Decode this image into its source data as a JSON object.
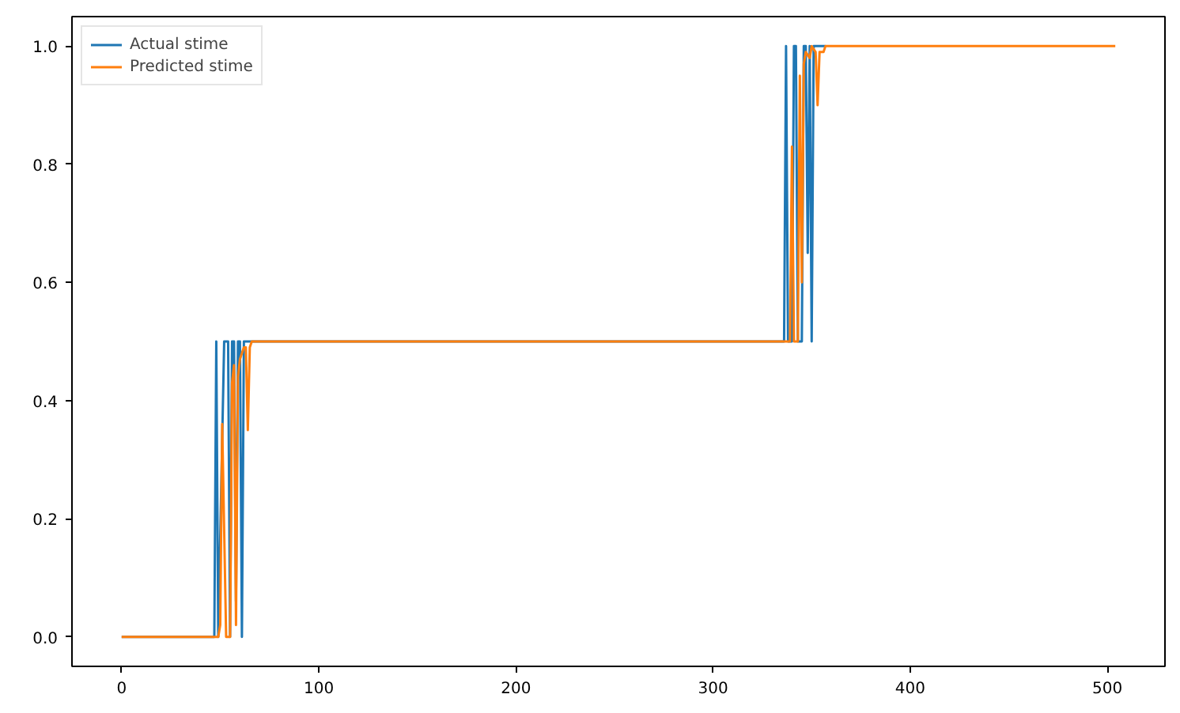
{
  "chart_data": {
    "type": "line",
    "legend": "top left",
    "grid": false,
    "xlim": [
      -25.2,
      529.2
    ],
    "ylim": [
      -0.05,
      1.05
    ],
    "xticks": [
      0,
      100,
      200,
      300,
      400,
      500
    ],
    "yticks": [
      {
        "value": 0,
        "label": "0.0"
      },
      {
        "value": 0.2,
        "label": "0.2"
      },
      {
        "value": 0.4,
        "label": "0.4"
      },
      {
        "value": 0.6,
        "label": "0.6"
      },
      {
        "value": 0.8,
        "label": "0.8"
      },
      {
        "value": 1,
        "label": "1.0"
      }
    ],
    "series": [
      {
        "name": "Actual stime",
        "color": "#1f77b4",
        "x": [
          0,
          47,
          48,
          49,
          52,
          54,
          55,
          56,
          57,
          58,
          59,
          60,
          61,
          62,
          336,
          337,
          338,
          340,
          341,
          342,
          343,
          345,
          346,
          347,
          348,
          349,
          350,
          351,
          357
        ],
        "values": [
          0,
          0,
          0.5,
          0,
          0.5,
          0.5,
          0,
          0.5,
          0.5,
          0.06,
          0.5,
          0.5,
          0,
          0.5,
          0.5,
          1,
          0.5,
          0.5,
          1,
          1,
          0.5,
          0.5,
          1,
          1,
          0.65,
          1,
          0.5,
          1,
          1
        ]
      },
      {
        "name": "Predicted stime",
        "color": "#ff7f0e",
        "x": [
          0,
          49,
          50,
          51,
          53,
          55,
          56,
          57,
          58,
          59,
          60,
          61,
          62,
          63,
          64,
          65,
          66,
          336,
          339,
          340,
          341,
          343,
          344,
          345,
          346,
          347,
          349,
          350,
          352,
          353,
          354,
          356,
          357,
          504
        ],
        "values": [
          0,
          0,
          0.02,
          0.36,
          0,
          0,
          0.43,
          0.46,
          0.02,
          0.44,
          0.47,
          0.48,
          0.49,
          0.49,
          0.35,
          0.49,
          0.5,
          0.5,
          0.5,
          0.83,
          0.5,
          0.5,
          0.95,
          0.6,
          0.97,
          0.99,
          0.98,
          1,
          0.99,
          0.9,
          0.99,
          0.99,
          1,
          1
        ]
      }
    ]
  }
}
